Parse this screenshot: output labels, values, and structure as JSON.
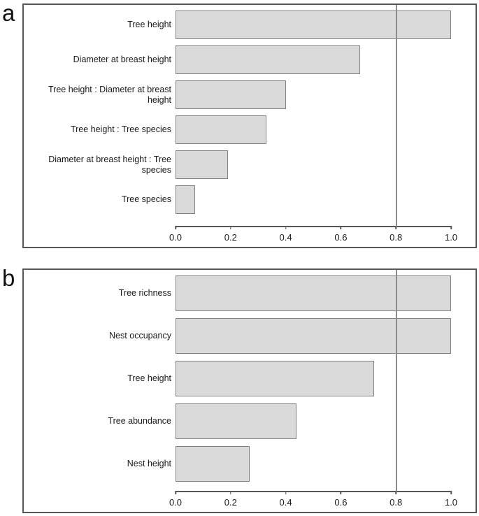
{
  "figure": {
    "background": "#ffffff",
    "colors": {
      "bar_fill": "#dadada",
      "bar_border": "#828282",
      "panel_border": "#565656",
      "axis_line": "#565656",
      "reference_line": "#8c8c8c",
      "text": "#1a1a1a"
    }
  },
  "chart_data": [
    {
      "type": "bar",
      "orientation": "horizontal",
      "panel_label": "a",
      "categories": [
        "Tree height",
        "Diameter at breast height",
        "Tree height : Diameter at breast height",
        "Tree height : Tree species",
        "Diameter at breast height : Tree species",
        "Tree species"
      ],
      "values": [
        1.0,
        0.67,
        0.4,
        0.33,
        0.19,
        0.07
      ],
      "title": "",
      "xlabel": "",
      "ylabel": "",
      "xlim": [
        0.0,
        1.0
      ],
      "x_ticks": [
        "0.0",
        "0.2",
        "0.4",
        "0.6",
        "0.8",
        "1.0"
      ],
      "reference_line_x": 0.8,
      "grid": "off",
      "legend": "none"
    },
    {
      "type": "bar",
      "orientation": "horizontal",
      "panel_label": "b",
      "categories": [
        "Tree richness",
        "Nest occupancy",
        "Tree height",
        "Tree abundance",
        "Nest height"
      ],
      "values": [
        1.0,
        1.0,
        0.72,
        0.44,
        0.27
      ],
      "title": "",
      "xlabel": "",
      "ylabel": "",
      "xlim": [
        0.0,
        1.0
      ],
      "x_ticks": [
        "0.0",
        "0.2",
        "0.4",
        "0.6",
        "0.8",
        "1.0"
      ],
      "reference_line_x": 0.8,
      "grid": "off",
      "legend": "none"
    }
  ]
}
